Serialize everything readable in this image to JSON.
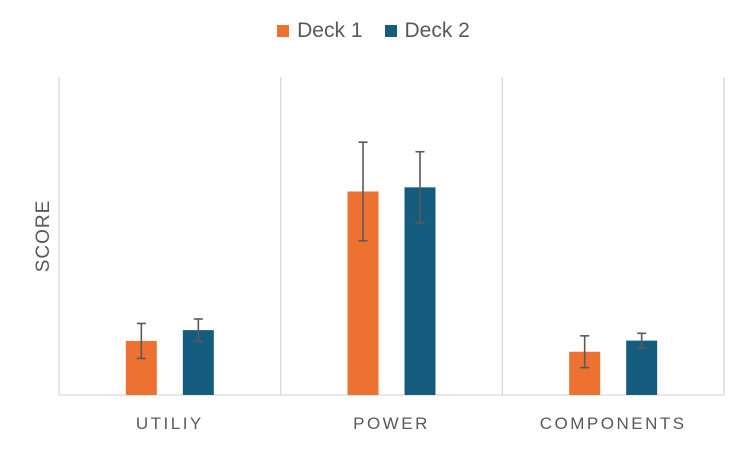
{
  "chart_data": {
    "type": "bar",
    "title": "",
    "xlabel": "",
    "ylabel": "SCORE",
    "categories": [
      "UTILIY",
      "POWER",
      "COMPONENTS"
    ],
    "ylim": [
      0,
      10
    ],
    "grid": "vertical separators only",
    "legend_placement": "top-center",
    "series": [
      {
        "name": "Deck 1",
        "color": "#ED7232",
        "values": [
          1.7,
          6.4,
          1.36
        ],
        "error": [
          0.55,
          1.55,
          0.5
        ]
      },
      {
        "name": "Deck 2",
        "color": "#155C7F",
        "values": [
          2.04,
          6.53,
          1.71
        ],
        "error": [
          0.35,
          1.12,
          0.23
        ]
      }
    ]
  }
}
